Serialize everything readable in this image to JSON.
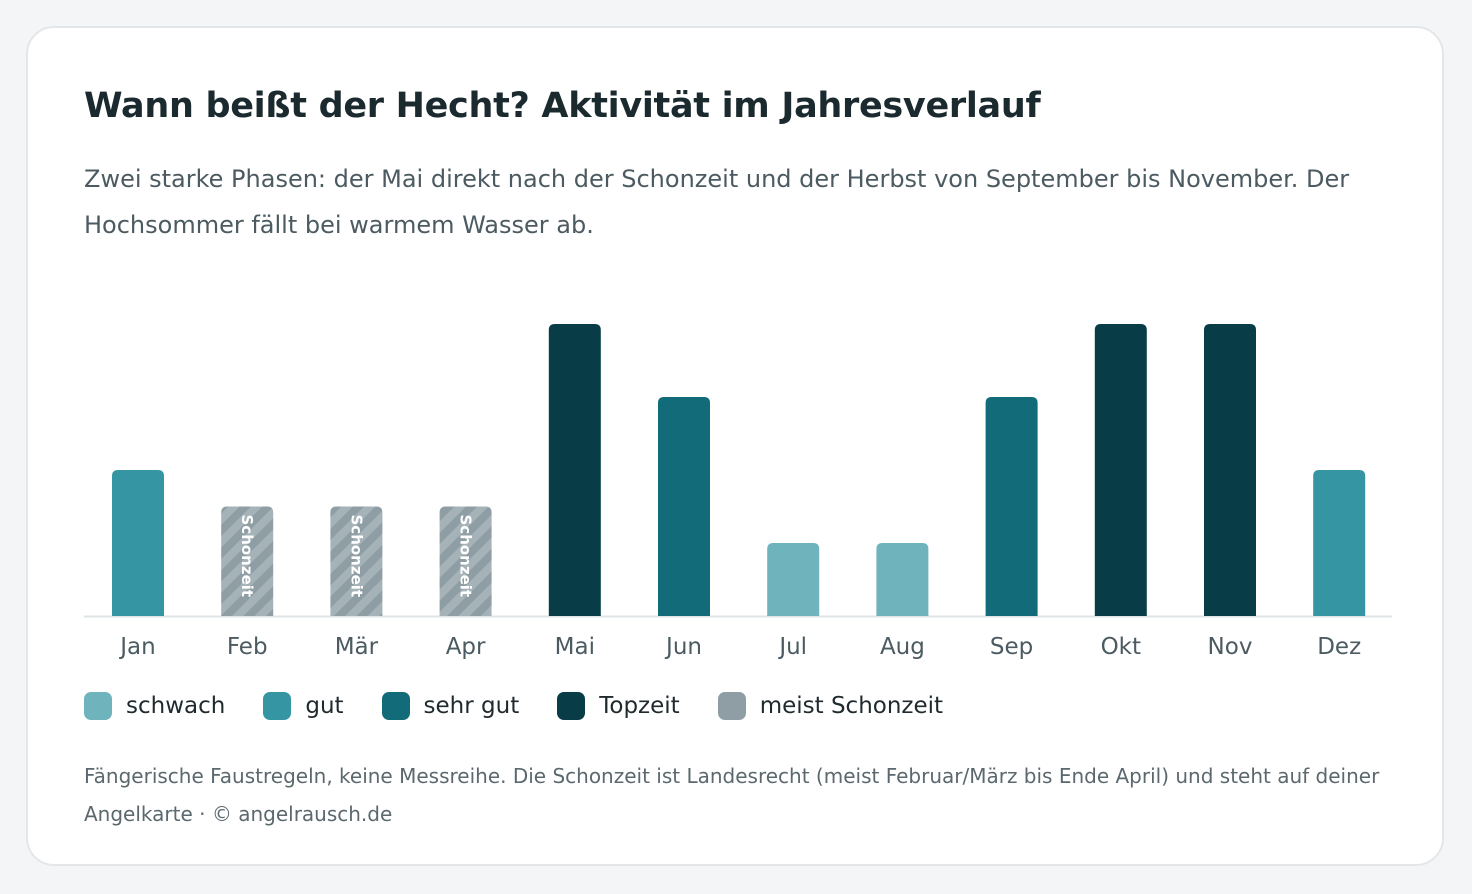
{
  "title": "Wann beißt der Hecht? Aktivität im Jahresverlauf",
  "subtitle": "Zwei starke Phasen: der Mai direkt nach der Schonzeit und der Herbst von September bis November. Der Hochsommer fällt bei warmem Wasser ab.",
  "footnote": "Fängerische Faustregeln, keine Messreihe. Die Schonzeit ist Landesrecht (meist Februar/März bis Ende April) und steht auf deiner Angelkarte · © angelrausch.de",
  "colors": {
    "schwach": "#6fb3bd",
    "gut": "#3595a3",
    "sehr_gut": "#126b79",
    "topzeit": "#083d48",
    "schonzeit": "#8e9ea4",
    "schonzeit_stripe": "#a5b3b8",
    "baseline": "#dfe5e7"
  },
  "legend": [
    {
      "label": "schwach",
      "color": "#6fb3bd"
    },
    {
      "label": "gut",
      "color": "#3595a3"
    },
    {
      "label": "sehr gut",
      "color": "#126b79"
    },
    {
      "label": "Topzeit",
      "color": "#083d48"
    },
    {
      "label": "meist Schonzeit",
      "color": "#8e9ea4"
    }
  ],
  "chart_data": {
    "type": "bar",
    "categories": [
      "Jan",
      "Feb",
      "Mär",
      "Apr",
      "Mai",
      "Jun",
      "Jul",
      "Aug",
      "Sep",
      "Okt",
      "Nov",
      "Dez"
    ],
    "values": [
      2,
      1.5,
      1.5,
      1.5,
      4,
      3,
      1,
      1,
      3,
      4,
      4,
      2
    ],
    "levels": [
      "gut",
      "meist Schonzeit",
      "meist Schonzeit",
      "meist Schonzeit",
      "Topzeit",
      "sehr gut",
      "schwach",
      "schwach",
      "sehr gut",
      "Topzeit",
      "Topzeit",
      "gut"
    ],
    "bar_labels": [
      "",
      "Schonzeit",
      "Schonzeit",
      "Schonzeit",
      "",
      "",
      "",
      "",
      "",
      "",
      "",
      ""
    ],
    "ylim": [
      0,
      4
    ],
    "grid": false,
    "legend_position": "bottom-left"
  }
}
